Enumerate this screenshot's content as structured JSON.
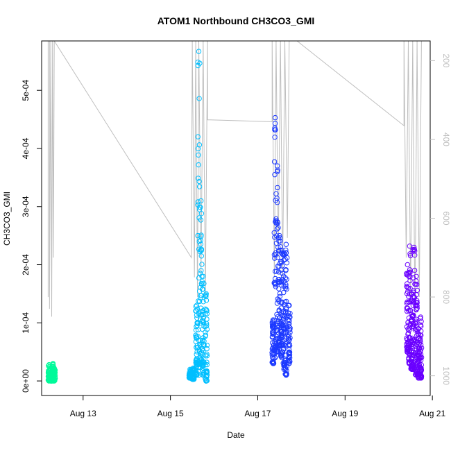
{
  "chart_data": {
    "type": "scatter",
    "title": "ATOM1 Northbound CH3CO3_GMI",
    "xlabel": "Date",
    "ylabel": "CH3CO3_GMI",
    "x_ticks": [
      "Aug 13",
      "Aug 15",
      "Aug 17",
      "Aug 19",
      "Aug 21"
    ],
    "y_ticks": [
      "0e+00",
      "1e-04",
      "2e-04",
      "3e-04",
      "4e-04",
      "5e-04"
    ],
    "y_right_ticks": [
      "200",
      "400",
      "600",
      "800",
      "1000"
    ],
    "xlim_days": [
      12.05,
      20.95
    ],
    "ylim": [
      -2.5e-05,
      0.000585
    ],
    "y_right_lim": [
      1050,
      150
    ],
    "series": [
      {
        "color": "#00FA9A",
        "flight_days": [
          12.2,
          12.35
        ],
        "values_min": 0.0,
        "values_max": 3e-05,
        "clusters": [
          {
            "day": 12.22,
            "min": 0.0,
            "max": 2.8e-05
          },
          {
            "day": 12.27,
            "min": 0.0,
            "max": 2.6e-05
          },
          {
            "day": 12.31,
            "min": 0.0,
            "max": 3e-05
          },
          {
            "day": 12.34,
            "min": 0.0,
            "max": 2.2e-05
          }
        ]
      },
      {
        "color": "#00BFFF",
        "flight_days": [
          15.4,
          15.85
        ],
        "values_min": 0.0,
        "values_max": 0.000567,
        "clusters": [
          {
            "day": 15.45,
            "min": 5e-06,
            "max": 2e-05
          },
          {
            "day": 15.52,
            "min": 3e-06,
            "max": 2.2e-05
          },
          {
            "day": 15.6,
            "min": 1e-05,
            "max": 0.00013
          },
          {
            "day": 15.65,
            "min": 1e-05,
            "max": 0.000567
          },
          {
            "day": 15.7,
            "min": 3e-05,
            "max": 0.00031
          },
          {
            "day": 15.75,
            "min": 1e-05,
            "max": 0.00018
          },
          {
            "day": 15.82,
            "min": 0.0,
            "max": 0.00015
          }
        ]
      },
      {
        "color": "#1C39FF",
        "flight_days": [
          17.3,
          17.75
        ],
        "values_min": 1e-05,
        "values_max": 0.000453,
        "clusters": [
          {
            "day": 17.35,
            "min": 3e-05,
            "max": 0.000105
          },
          {
            "day": 17.4,
            "min": 4e-05,
            "max": 0.000453
          },
          {
            "day": 17.45,
            "min": 5e-05,
            "max": 0.00037
          },
          {
            "day": 17.5,
            "min": 6e-05,
            "max": 0.00025
          },
          {
            "day": 17.55,
            "min": 4e-05,
            "max": 0.000225
          },
          {
            "day": 17.6,
            "min": 2e-05,
            "max": 0.00022
          },
          {
            "day": 17.65,
            "min": 1e-05,
            "max": 0.000235
          },
          {
            "day": 17.72,
            "min": 3e-05,
            "max": 0.00013
          }
        ]
      },
      {
        "color": "#6A00FF",
        "flight_days": [
          20.4,
          20.75
        ],
        "values_min": 5e-06,
        "values_max": 0.000232,
        "clusters": [
          {
            "day": 20.43,
            "min": 5e-05,
            "max": 0.0002
          },
          {
            "day": 20.48,
            "min": 3e-05,
            "max": 0.000232
          },
          {
            "day": 20.53,
            "min": 2e-05,
            "max": 0.00015
          },
          {
            "day": 20.58,
            "min": 2e-05,
            "max": 0.00023
          },
          {
            "day": 20.63,
            "min": 1e-05,
            "max": 0.00018
          },
          {
            "day": 20.68,
            "min": 5e-06,
            "max": 9e-05
          },
          {
            "day": 20.73,
            "min": 5e-06,
            "max": 0.00011
          }
        ]
      }
    ],
    "pressure_trace": {
      "color": "#BEBEBE",
      "points_day_hpa": [
        [
          12.2,
          800
        ],
        [
          12.2,
          150
        ],
        [
          12.23,
          150
        ],
        [
          12.23,
          830
        ],
        [
          12.26,
          150
        ],
        [
          12.28,
          850
        ],
        [
          12.3,
          150
        ],
        [
          12.32,
          700
        ],
        [
          12.34,
          150
        ],
        [
          15.48,
          700
        ],
        [
          15.5,
          150
        ],
        [
          15.55,
          750
        ],
        [
          15.58,
          150
        ],
        [
          15.62,
          800
        ],
        [
          15.65,
          150
        ],
        [
          15.7,
          750
        ],
        [
          15.75,
          150
        ],
        [
          15.8,
          800
        ],
        [
          15.85,
          150
        ],
        [
          15.85,
          350
        ],
        [
          17.33,
          355
        ],
        [
          17.33,
          150
        ],
        [
          17.38,
          750
        ],
        [
          17.42,
          150
        ],
        [
          17.47,
          700
        ],
        [
          17.52,
          150
        ],
        [
          17.57,
          750
        ],
        [
          17.62,
          150
        ],
        [
          17.68,
          650
        ],
        [
          17.72,
          150
        ],
        [
          17.9,
          150
        ],
        [
          20.35,
          365
        ],
        [
          20.35,
          150
        ],
        [
          20.4,
          700
        ],
        [
          20.45,
          150
        ],
        [
          20.5,
          800
        ],
        [
          20.55,
          150
        ],
        [
          20.6,
          850
        ],
        [
          20.65,
          150
        ],
        [
          20.7,
          800
        ],
        [
          20.75,
          150
        ]
      ]
    },
    "grid": false,
    "legend": "none"
  }
}
